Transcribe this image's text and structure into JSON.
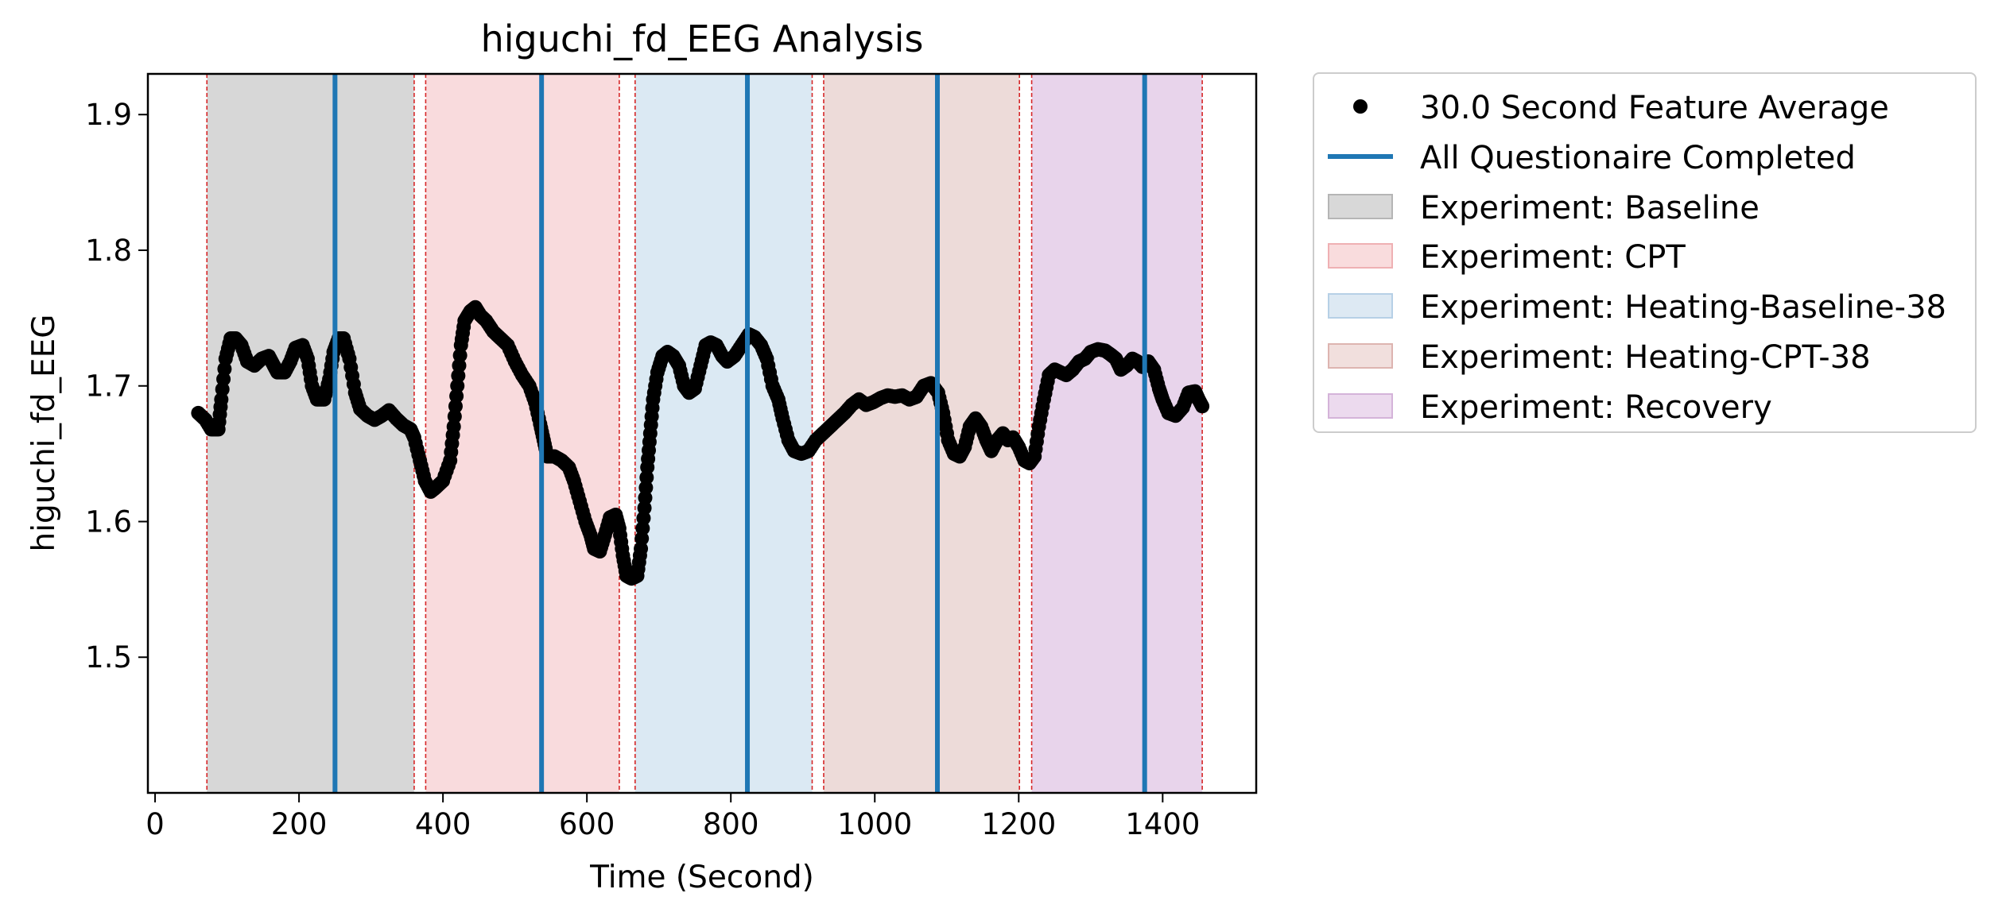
{
  "chart_data": {
    "type": "scatter",
    "title": "higuchi_fd_EEG Analysis",
    "xlabel": "Time (Second)",
    "ylabel": "higuchi_fd_EEG",
    "xlim": [
      -10,
      1530
    ],
    "ylim": [
      1.4,
      1.93
    ],
    "xticks": [
      0,
      200,
      400,
      600,
      800,
      1000,
      1200,
      1400
    ],
    "yticks": [
      1.5,
      1.6,
      1.7,
      1.8,
      1.9
    ],
    "grid": false,
    "legend_placement": "outside-top-right",
    "series": [
      {
        "name": "30.0 Second Feature Average",
        "color": "#000000",
        "points": [
          [
            60,
            1.68
          ],
          [
            70,
            1.675
          ],
          [
            78,
            1.668
          ],
          [
            88,
            1.668
          ],
          [
            92,
            1.69
          ],
          [
            98,
            1.72
          ],
          [
            105,
            1.735
          ],
          [
            112,
            1.735
          ],
          [
            120,
            1.73
          ],
          [
            128,
            1.718
          ],
          [
            138,
            1.715
          ],
          [
            148,
            1.72
          ],
          [
            158,
            1.722
          ],
          [
            165,
            1.715
          ],
          [
            170,
            1.71
          ],
          [
            180,
            1.71
          ],
          [
            188,
            1.718
          ],
          [
            195,
            1.728
          ],
          [
            205,
            1.73
          ],
          [
            212,
            1.72
          ],
          [
            218,
            1.7
          ],
          [
            225,
            1.69
          ],
          [
            235,
            1.69
          ],
          [
            242,
            1.705
          ],
          [
            248,
            1.725
          ],
          [
            255,
            1.735
          ],
          [
            262,
            1.735
          ],
          [
            270,
            1.72
          ],
          [
            278,
            1.695
          ],
          [
            285,
            1.683
          ],
          [
            295,
            1.678
          ],
          [
            305,
            1.675
          ],
          [
            315,
            1.678
          ],
          [
            325,
            1.682
          ],
          [
            335,
            1.676
          ],
          [
            345,
            1.671
          ],
          [
            355,
            1.668
          ],
          [
            360,
            1.662
          ],
          [
            368,
            1.645
          ],
          [
            375,
            1.63
          ],
          [
            383,
            1.622
          ],
          [
            390,
            1.625
          ],
          [
            400,
            1.63
          ],
          [
            410,
            1.645
          ],
          [
            415,
            1.67
          ],
          [
            420,
            1.7
          ],
          [
            425,
            1.73
          ],
          [
            430,
            1.748
          ],
          [
            438,
            1.755
          ],
          [
            445,
            1.758
          ],
          [
            452,
            1.752
          ],
          [
            460,
            1.748
          ],
          [
            470,
            1.74
          ],
          [
            480,
            1.735
          ],
          [
            490,
            1.73
          ],
          [
            500,
            1.718
          ],
          [
            510,
            1.708
          ],
          [
            520,
            1.7
          ],
          [
            528,
            1.688
          ],
          [
            535,
            1.672
          ],
          [
            540,
            1.66
          ],
          [
            545,
            1.648
          ],
          [
            555,
            1.648
          ],
          [
            565,
            1.645
          ],
          [
            575,
            1.64
          ],
          [
            582,
            1.63
          ],
          [
            590,
            1.615
          ],
          [
            598,
            1.6
          ],
          [
            605,
            1.59
          ],
          [
            610,
            1.58
          ],
          [
            618,
            1.578
          ],
          [
            625,
            1.59
          ],
          [
            632,
            1.603
          ],
          [
            640,
            1.605
          ],
          [
            645,
            1.595
          ],
          [
            650,
            1.575
          ],
          [
            655,
            1.56
          ],
          [
            662,
            1.558
          ],
          [
            670,
            1.56
          ],
          [
            675,
            1.58
          ],
          [
            680,
            1.61
          ],
          [
            684,
            1.64
          ],
          [
            688,
            1.665
          ],
          [
            692,
            1.69
          ],
          [
            698,
            1.71
          ],
          [
            705,
            1.722
          ],
          [
            712,
            1.725
          ],
          [
            720,
            1.722
          ],
          [
            728,
            1.715
          ],
          [
            735,
            1.7
          ],
          [
            742,
            1.695
          ],
          [
            750,
            1.698
          ],
          [
            758,
            1.715
          ],
          [
            765,
            1.73
          ],
          [
            772,
            1.732
          ],
          [
            780,
            1.73
          ],
          [
            788,
            1.722
          ],
          [
            795,
            1.718
          ],
          [
            805,
            1.722
          ],
          [
            815,
            1.73
          ],
          [
            825,
            1.738
          ],
          [
            833,
            1.736
          ],
          [
            842,
            1.73
          ],
          [
            850,
            1.72
          ],
          [
            858,
            1.7
          ],
          [
            866,
            1.69
          ],
          [
            872,
            1.676
          ],
          [
            880,
            1.66
          ],
          [
            888,
            1.652
          ],
          [
            898,
            1.65
          ],
          [
            908,
            1.652
          ],
          [
            918,
            1.66
          ],
          [
            928,
            1.665
          ],
          [
            938,
            1.67
          ],
          [
            948,
            1.675
          ],
          [
            958,
            1.68
          ],
          [
            968,
            1.686
          ],
          [
            978,
            1.69
          ],
          [
            988,
            1.686
          ],
          [
            998,
            1.688
          ],
          [
            1008,
            1.691
          ],
          [
            1018,
            1.693
          ],
          [
            1028,
            1.692
          ],
          [
            1038,
            1.693
          ],
          [
            1048,
            1.69
          ],
          [
            1058,
            1.692
          ],
          [
            1068,
            1.7
          ],
          [
            1078,
            1.702
          ],
          [
            1088,
            1.695
          ],
          [
            1095,
            1.68
          ],
          [
            1102,
            1.66
          ],
          [
            1110,
            1.65
          ],
          [
            1118,
            1.648
          ],
          [
            1125,
            1.655
          ],
          [
            1132,
            1.67
          ],
          [
            1140,
            1.676
          ],
          [
            1148,
            1.67
          ],
          [
            1155,
            1.66
          ],
          [
            1162,
            1.652
          ],
          [
            1170,
            1.66
          ],
          [
            1178,
            1.665
          ],
          [
            1185,
            1.66
          ],
          [
            1192,
            1.662
          ],
          [
            1200,
            1.655
          ],
          [
            1208,
            1.645
          ],
          [
            1215,
            1.643
          ],
          [
            1222,
            1.648
          ],
          [
            1228,
            1.67
          ],
          [
            1235,
            1.69
          ],
          [
            1242,
            1.708
          ],
          [
            1250,
            1.712
          ],
          [
            1258,
            1.71
          ],
          [
            1266,
            1.708
          ],
          [
            1275,
            1.712
          ],
          [
            1284,
            1.718
          ],
          [
            1292,
            1.72
          ],
          [
            1300,
            1.725
          ],
          [
            1310,
            1.727
          ],
          [
            1320,
            1.726
          ],
          [
            1328,
            1.723
          ],
          [
            1335,
            1.72
          ],
          [
            1342,
            1.712
          ],
          [
            1350,
            1.715
          ],
          [
            1358,
            1.72
          ],
          [
            1365,
            1.718
          ],
          [
            1372,
            1.714
          ],
          [
            1380,
            1.718
          ],
          [
            1388,
            1.712
          ],
          [
            1395,
            1.698
          ],
          [
            1400,
            1.69
          ],
          [
            1408,
            1.68
          ],
          [
            1418,
            1.678
          ],
          [
            1428,
            1.684
          ],
          [
            1436,
            1.695
          ],
          [
            1445,
            1.696
          ],
          [
            1450,
            1.69
          ],
          [
            1455,
            1.685
          ]
        ]
      }
    ],
    "questionnaire_lines": {
      "name": "All Questionaire Completed",
      "color": "#1f77b4",
      "x": [
        250,
        537,
        823,
        1087,
        1375
      ]
    },
    "phase_boundaries": {
      "color": "#d62728",
      "x": [
        72,
        360,
        376,
        645,
        667,
        913,
        929,
        1201,
        1218,
        1455
      ]
    },
    "regions": [
      {
        "name": "Experiment: Baseline",
        "x0": 72,
        "x1": 360,
        "color": "#bdbdbd",
        "alpha": 0.6
      },
      {
        "name": "Experiment: CPT",
        "x0": 376,
        "x1": 645,
        "color": "#f4b7bb",
        "alpha": 0.5
      },
      {
        "name": "Experiment: Heating-Baseline-38",
        "x0": 667,
        "x1": 913,
        "color": "#b8d4e8",
        "alpha": 0.5
      },
      {
        "name": "Experiment: Heating-CPT-38",
        "x0": 929,
        "x1": 1201,
        "color": "#dcb8b4",
        "alpha": 0.5
      },
      {
        "name": "Experiment: Recovery",
        "x0": 1218,
        "x1": 1455,
        "color": "#d8b8de",
        "alpha": 0.6
      }
    ]
  },
  "legend": {
    "items": [
      {
        "label": "30.0 Second Feature Average",
        "kind": "marker",
        "color": "#000000"
      },
      {
        "label": "All Questionaire Completed",
        "kind": "line",
        "color": "#1f77b4"
      },
      {
        "label": "Experiment: Baseline",
        "kind": "patch",
        "color": "#d8d8d8",
        "edge": "#b5b5b5"
      },
      {
        "label": "Experiment: CPT",
        "kind": "patch",
        "color": "#f9dcdd",
        "edge": "#efb0b3"
      },
      {
        "label": "Experiment: Heating-Baseline-38",
        "kind": "patch",
        "color": "#dde9f3",
        "edge": "#b6d0e6"
      },
      {
        "label": "Experiment: Heating-CPT-38",
        "kind": "patch",
        "color": "#f1dfdd",
        "edge": "#ddb4b0"
      },
      {
        "label": "Experiment: Recovery",
        "kind": "patch",
        "color": "#ecdaee",
        "edge": "#d4b3d9"
      }
    ]
  }
}
